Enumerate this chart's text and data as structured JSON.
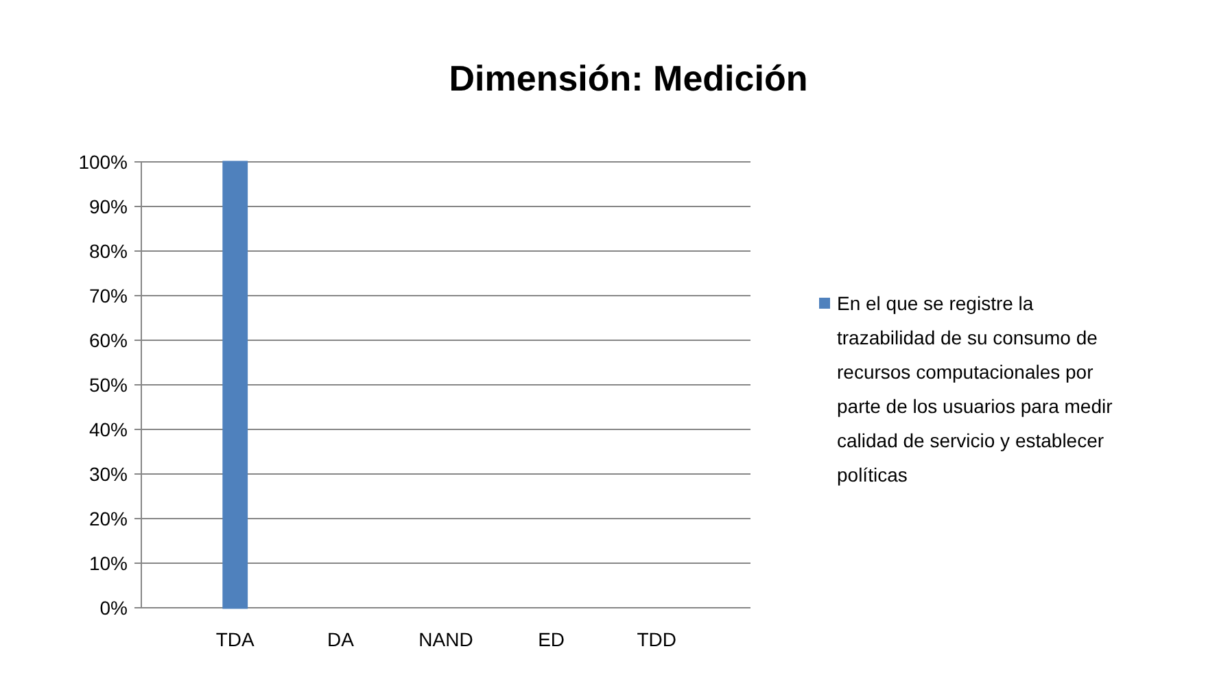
{
  "chart_data": {
    "type": "bar",
    "title": "Dimensión: Medición",
    "categories": [
      "TDA",
      "DA",
      "NAND",
      "ED",
      "TDD"
    ],
    "series": [
      {
        "name": "En el que se registre la trazabilidad de su consumo de recursos computacionales por parte de los usuarios para medir calidad de servicio y establecer políticas",
        "color": "#4f81bd",
        "values": [
          100,
          0,
          0,
          0,
          0
        ]
      }
    ],
    "ylim": [
      0,
      100
    ],
    "yticks": [
      {
        "value": 0,
        "label": "0%"
      },
      {
        "value": 10,
        "label": "10%"
      },
      {
        "value": 20,
        "label": "20%"
      },
      {
        "value": 30,
        "label": "30%"
      },
      {
        "value": 40,
        "label": "40%"
      },
      {
        "value": 50,
        "label": "50%"
      },
      {
        "value": 60,
        "label": "60%"
      },
      {
        "value": 70,
        "label": "70%"
      },
      {
        "value": 80,
        "label": "80%"
      },
      {
        "value": 90,
        "label": "90%"
      },
      {
        "value": 100,
        "label": "100%"
      }
    ],
    "grid": "y",
    "legend": "right"
  }
}
